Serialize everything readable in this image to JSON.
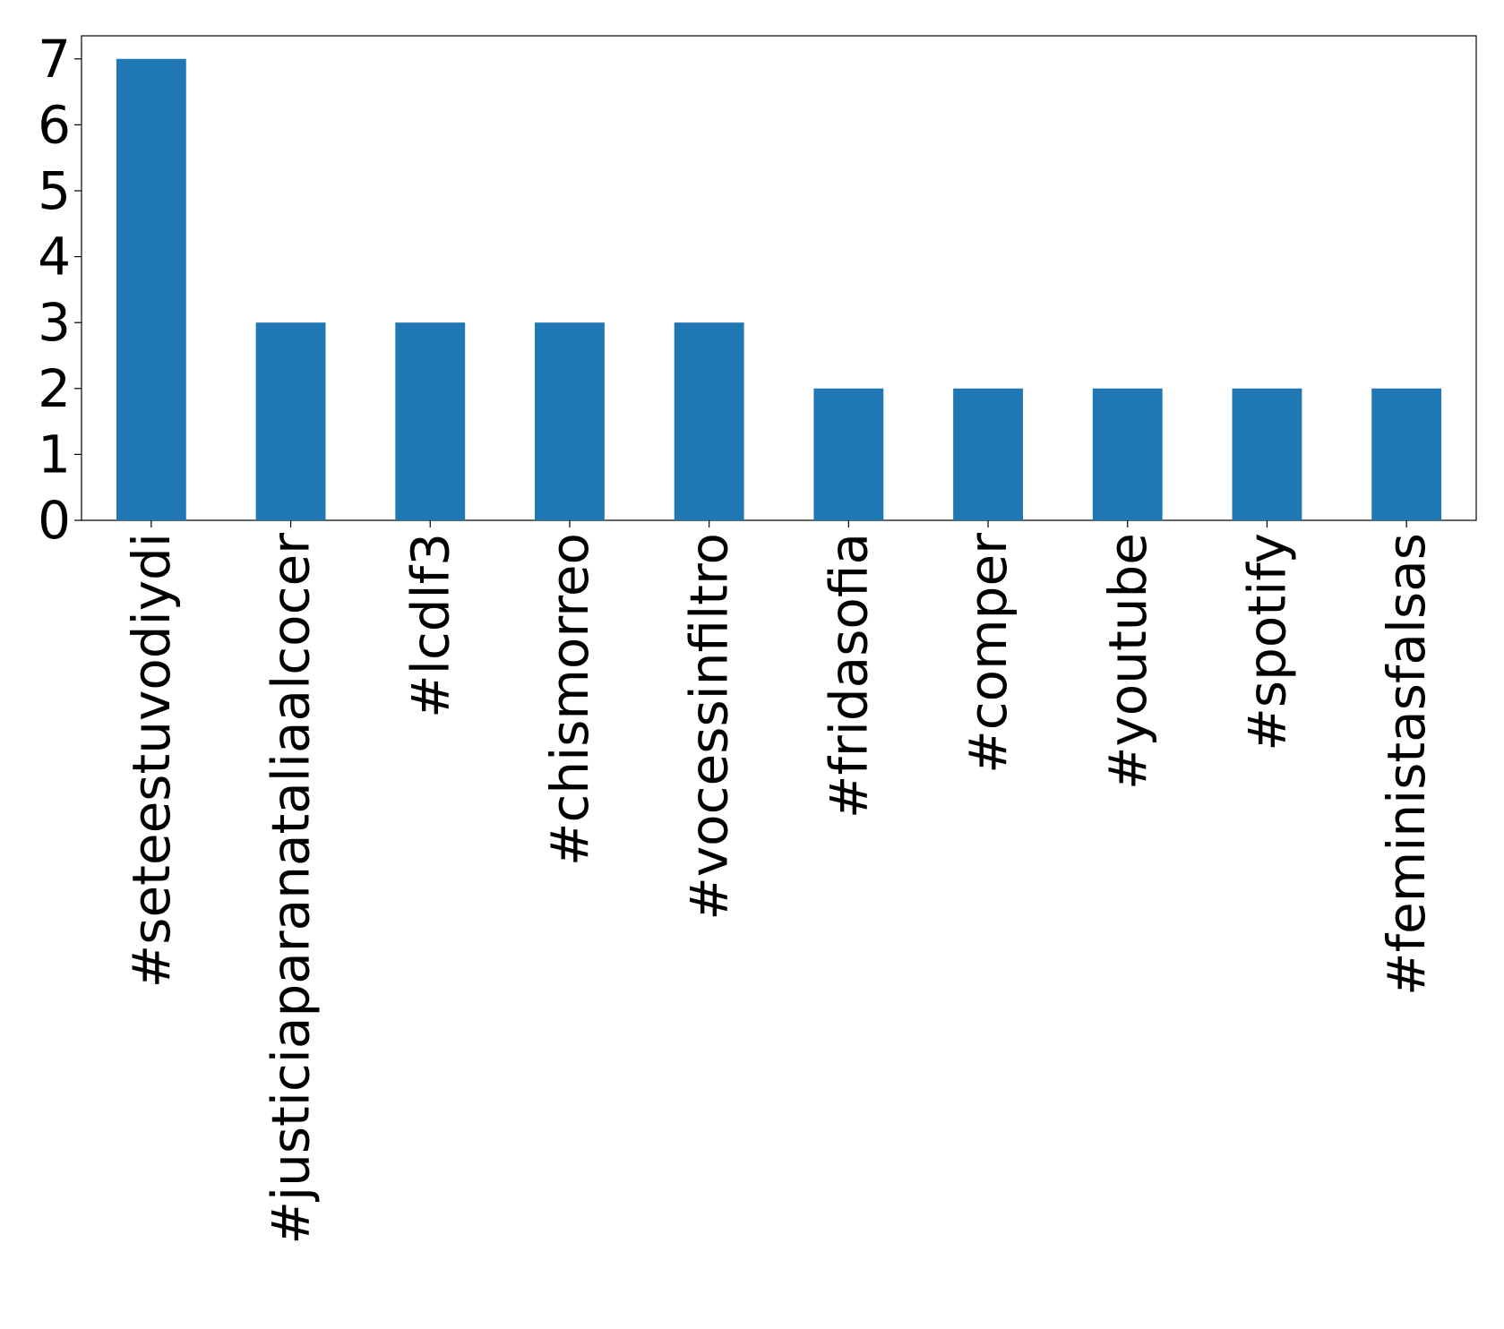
{
  "chart_data": {
    "type": "bar",
    "categories": [
      "#seteestuvodiydi",
      "#justiciaparanataliaalcocer",
      "#lcdlf3",
      "#chismorreo",
      "#vocessinfiltro",
      "#fridasofia",
      "#comper",
      "#youtube",
      "#spotify",
      "#feministasfalsas"
    ],
    "values": [
      7,
      3,
      3,
      3,
      3,
      2,
      2,
      2,
      2,
      2
    ],
    "color": "#1f77b4",
    "ylim": [
      0,
      7.35
    ],
    "yticks": [
      0,
      1,
      2,
      3,
      4,
      5,
      6,
      7
    ],
    "grid": false
  }
}
